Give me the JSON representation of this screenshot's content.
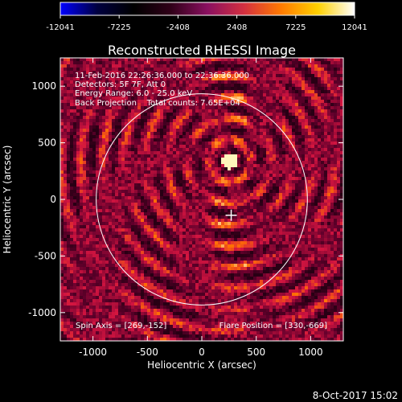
{
  "colorbar": {
    "tick_labels": [
      "-12041",
      "-7225",
      "-2408",
      "2408",
      "7225",
      "12041"
    ],
    "range": [
      -12041,
      12041
    ],
    "colors": [
      "#0000ff",
      "#000040",
      "#000000",
      "#300018",
      "#8a1060",
      "#d43040",
      "#ff7a00",
      "#ffd000",
      "#ffffff"
    ]
  },
  "chart_data": {
    "type": "heatmap",
    "title": "Reconstructed RHESSI Image",
    "xlabel": "Heliocentric X (arcsec)",
    "ylabel": "Heliocentric Y (arcsec)",
    "xlim": [
      -1300,
      1300
    ],
    "ylim": [
      -1250,
      1250
    ],
    "x_ticks": [
      "-1000",
      "-500",
      "0",
      "500",
      "1000"
    ],
    "y_ticks": [
      "-1000",
      "-500",
      "0",
      "500",
      "1000"
    ],
    "solar_limb_radius": 970,
    "source_peak": [
      255,
      340
    ],
    "flare_marker": [
      270,
      -140
    ],
    "info_lines": [
      "11-Feb-2016 22:26:36.000 to 22:36:36.000",
      "Detectors: 5F 7F, Att 0",
      "Energy Range: 6.0 - 25.0 keV",
      "Back Projection    Total counts: 7.65E+04"
    ],
    "spin_axis_label": "Spin Axis = [269,-152]",
    "flare_position_label": "Flare Position = [330,-669]"
  },
  "footer": {
    "timestamp": "8-Oct-2017 15:02"
  }
}
